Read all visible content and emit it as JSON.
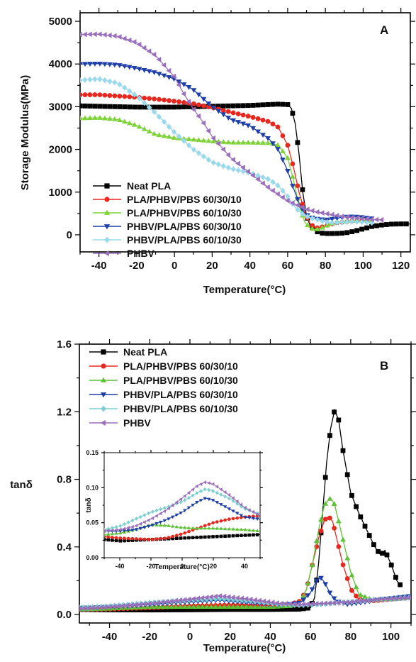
{
  "chart_data": [
    {
      "type": "line",
      "panel_label": "A",
      "xlabel": "Temperature(°C)",
      "ylabel": "Storage Modulus(MPa)",
      "xlim": [
        -50,
        125
      ],
      "ylim": [
        -400,
        5200
      ],
      "xticks": [
        -40,
        -20,
        0,
        20,
        40,
        60,
        80,
        100,
        120
      ],
      "yticks": [
        0,
        1000,
        2000,
        3000,
        4000,
        5000
      ],
      "legend_position": "bottom-left",
      "series": [
        {
          "name": "Neat PLA",
          "color": "#000000",
          "marker": "square",
          "x": [
            -50,
            -40,
            -30,
            -20,
            -10,
            0,
            10,
            20,
            30,
            40,
            50,
            55,
            60,
            62,
            64,
            66,
            68,
            70,
            72,
            75,
            78,
            80,
            85,
            90,
            95,
            100,
            105,
            110,
            115,
            120,
            125
          ],
          "y": [
            3020,
            3010,
            3000,
            2990,
            2990,
            2990,
            3000,
            3010,
            3020,
            3030,
            3050,
            3060,
            3050,
            2960,
            2600,
            1900,
            1000,
            450,
            200,
            80,
            40,
            30,
            30,
            40,
            80,
            140,
            200,
            230,
            250,
            255,
            255
          ]
        },
        {
          "name": "PLA/PHBV/PBS 60/30/10",
          "color": "#e8281e",
          "marker": "circle",
          "x": [
            -50,
            -40,
            -30,
            -20,
            -10,
            0,
            10,
            20,
            30,
            40,
            50,
            55,
            60,
            63,
            66,
            69,
            72,
            75,
            78,
            82,
            86,
            90,
            95,
            100,
            105
          ],
          "y": [
            3280,
            3280,
            3250,
            3220,
            3180,
            3130,
            3070,
            2980,
            2870,
            2770,
            2650,
            2520,
            2100,
            1600,
            1000,
            550,
            250,
            160,
            180,
            240,
            280,
            300,
            320,
            330,
            330
          ]
        },
        {
          "name": "PLA/PHBV/PBS 60/10/30",
          "color": "#7fd33a",
          "marker": "triangle-up",
          "x": [
            -50,
            -40,
            -30,
            -20,
            -10,
            0,
            10,
            20,
            30,
            40,
            50,
            55,
            60,
            63,
            66,
            69,
            72,
            75,
            78,
            82,
            86,
            90,
            95,
            100,
            105
          ],
          "y": [
            2730,
            2740,
            2700,
            2560,
            2350,
            2270,
            2230,
            2190,
            2160,
            2160,
            2150,
            2100,
            1800,
            1300,
            700,
            300,
            150,
            120,
            160,
            240,
            300,
            320,
            330,
            330,
            330
          ]
        },
        {
          "name": "PHBV/PLA/PBS 60/30/10",
          "color": "#1f3fa8",
          "marker": "triangle-down",
          "x": [
            -50,
            -40,
            -30,
            -20,
            -10,
            0,
            10,
            20,
            30,
            40,
            50,
            55,
            60,
            63,
            66,
            69,
            72,
            75,
            80,
            85,
            90,
            95,
            100,
            105
          ],
          "y": [
            4000,
            4010,
            3980,
            3900,
            3800,
            3650,
            3400,
            3000,
            2700,
            2550,
            2250,
            2000,
            1500,
            1100,
            750,
            500,
            420,
            380,
            350,
            380,
            420,
            430,
            410,
            380
          ]
        },
        {
          "name": "PHBV/PLA/PBS 60/10/30",
          "color": "#9ad8ec",
          "marker": "diamond",
          "x": [
            -50,
            -40,
            -30,
            -20,
            -10,
            0,
            10,
            20,
            30,
            40,
            50,
            55,
            60,
            63,
            66,
            69,
            72,
            76,
            80,
            85,
            90,
            95,
            100,
            105
          ],
          "y": [
            3620,
            3650,
            3550,
            3250,
            2850,
            2400,
            2000,
            1700,
            1550,
            1450,
            1300,
            1150,
            900,
            700,
            550,
            450,
            400,
            350,
            300,
            280,
            300,
            310,
            300,
            280
          ]
        },
        {
          "name": "PHBV",
          "color": "#9a6fbc",
          "marker": "triangle-left",
          "x": [
            -50,
            -40,
            -30,
            -20,
            -10,
            0,
            5,
            10,
            15,
            20,
            30,
            40,
            50,
            55,
            60,
            65,
            70,
            75,
            80,
            85,
            90,
            95,
            100,
            105,
            110
          ],
          "y": [
            4690,
            4700,
            4650,
            4500,
            4200,
            3700,
            3300,
            2950,
            2650,
            2300,
            1800,
            1450,
            1100,
            950,
            800,
            700,
            600,
            540,
            500,
            460,
            420,
            400,
            380,
            360,
            350
          ]
        }
      ]
    },
    {
      "type": "line",
      "panel_label": "B",
      "xlabel": "Temperature(°C)",
      "ylabel": "tanδ",
      "xlim": [
        -55,
        110
      ],
      "ylim": [
        -0.05,
        1.6
      ],
      "xticks": [
        -40,
        -20,
        0,
        20,
        40,
        60,
        80,
        100
      ],
      "yticks": [
        0.0,
        0.4,
        0.8,
        1.2,
        1.6
      ],
      "ytick_labels": [
        "0.0",
        "0.4",
        "0.8",
        "1.2",
        "1.6"
      ],
      "legend_position": "top-left",
      "series": [
        {
          "name": "Neat PLA",
          "color": "#000000",
          "marker": "square",
          "x": [
            -55,
            -40,
            -20,
            0,
            20,
            40,
            55,
            60,
            62,
            64,
            66,
            68,
            70,
            72,
            74,
            76,
            78,
            80,
            84,
            88,
            92,
            95,
            97,
            100,
            103,
            105
          ],
          "y": [
            0.03,
            0.028,
            0.027,
            0.028,
            0.03,
            0.03,
            0.032,
            0.04,
            0.1,
            0.3,
            0.6,
            0.9,
            1.1,
            1.21,
            1.15,
            0.98,
            0.85,
            0.72,
            0.6,
            0.5,
            0.4,
            0.35,
            0.38,
            0.3,
            0.2,
            0.17
          ]
        },
        {
          "name": "PLA/PHBV/PBS 60/30/10",
          "color": "#e8281e",
          "marker": "circle",
          "x": [
            -55,
            -40,
            -20,
            0,
            20,
            40,
            50,
            55,
            58,
            61,
            64,
            67,
            69,
            71,
            73,
            76,
            80,
            84,
            90,
            100,
            110
          ],
          "y": [
            0.03,
            0.032,
            0.04,
            0.05,
            0.055,
            0.055,
            0.06,
            0.08,
            0.15,
            0.3,
            0.45,
            0.56,
            0.58,
            0.55,
            0.45,
            0.3,
            0.15,
            0.09,
            0.08,
            0.09,
            0.1
          ]
        },
        {
          "name": "PLA/PHBV/PBS 60/10/30",
          "color": "#5fc136",
          "marker": "triangle-up",
          "x": [
            -55,
            -40,
            -20,
            0,
            20,
            40,
            50,
            55,
            58,
            61,
            64,
            67,
            70,
            72,
            74,
            77,
            80,
            84,
            90,
            100,
            110
          ],
          "y": [
            0.03,
            0.035,
            0.045,
            0.045,
            0.045,
            0.045,
            0.05,
            0.07,
            0.15,
            0.3,
            0.5,
            0.65,
            0.69,
            0.65,
            0.55,
            0.4,
            0.25,
            0.12,
            0.09,
            0.09,
            0.1
          ]
        },
        {
          "name": "PHBV/PLA/PBS 60/30/10",
          "color": "#1f3fa8",
          "marker": "triangle-down",
          "x": [
            -55,
            -40,
            -20,
            0,
            15,
            30,
            45,
            55,
            60,
            63,
            65,
            67,
            70,
            73,
            78,
            85,
            95,
            110
          ],
          "y": [
            0.04,
            0.045,
            0.06,
            0.075,
            0.085,
            0.07,
            0.055,
            0.07,
            0.13,
            0.2,
            0.22,
            0.19,
            0.12,
            0.08,
            0.06,
            0.07,
            0.09,
            0.11
          ]
        },
        {
          "name": "PHBV/PLA/PBS 60/10/30",
          "color": "#7cd0cf",
          "marker": "diamond",
          "x": [
            -55,
            -40,
            -20,
            0,
            15,
            30,
            45,
            55,
            65,
            75,
            85,
            95,
            110
          ],
          "y": [
            0.04,
            0.05,
            0.07,
            0.085,
            0.095,
            0.08,
            0.06,
            0.055,
            0.06,
            0.07,
            0.08,
            0.09,
            0.1
          ]
        },
        {
          "name": "PHBV",
          "color": "#9a6fbc",
          "marker": "triangle-left",
          "x": [
            -55,
            -40,
            -20,
            0,
            15,
            30,
            45,
            55,
            65,
            75,
            85,
            95,
            110
          ],
          "y": [
            0.035,
            0.045,
            0.065,
            0.09,
            0.11,
            0.09,
            0.065,
            0.06,
            0.065,
            0.07,
            0.08,
            0.09,
            0.1
          ]
        }
      ]
    },
    {
      "type": "line",
      "panel_label": "",
      "xlabel": "Temperature(°C)",
      "ylabel": "tanδ",
      "xlim": [
        -50,
        50
      ],
      "ylim": [
        0.0,
        0.15
      ],
      "xticks": [
        -40,
        -20,
        0,
        20,
        40
      ],
      "yticks": [
        0.0,
        0.05,
        0.1,
        0.15
      ],
      "ytick_labels": [
        "0.00",
        "0.05",
        "0.10",
        "0.15"
      ],
      "series": [
        {
          "name": "Neat PLA",
          "color": "#000000",
          "marker": "square",
          "x": [
            -50,
            -40,
            -30,
            -20,
            -10,
            0,
            10,
            20,
            30,
            40,
            50
          ],
          "y": [
            0.026,
            0.024,
            0.025,
            0.026,
            0.027,
            0.028,
            0.029,
            0.03,
            0.031,
            0.032,
            0.033
          ]
        },
        {
          "name": "PLA/PHBV/PBS 60/30/10",
          "color": "#e8281e",
          "marker": "circle",
          "x": [
            -50,
            -40,
            -30,
            -20,
            -10,
            0,
            10,
            20,
            30,
            40,
            50
          ],
          "y": [
            0.03,
            0.028,
            0.027,
            0.026,
            0.028,
            0.034,
            0.042,
            0.05,
            0.055,
            0.058,
            0.06
          ]
        },
        {
          "name": "PLA/PHBV/PBS 60/10/30",
          "color": "#5fc136",
          "marker": "triangle-up",
          "x": [
            -50,
            -40,
            -30,
            -20,
            -10,
            0,
            10,
            20,
            30,
            40,
            50
          ],
          "y": [
            0.033,
            0.035,
            0.04,
            0.047,
            0.046,
            0.043,
            0.042,
            0.042,
            0.041,
            0.04,
            0.038
          ]
        },
        {
          "name": "PHBV/PLA/PBS 60/30/10",
          "color": "#1f3fa8",
          "marker": "triangle-down",
          "x": [
            -50,
            -40,
            -30,
            -20,
            -10,
            0,
            10,
            15,
            20,
            30,
            40,
            50
          ],
          "y": [
            0.038,
            0.038,
            0.04,
            0.046,
            0.054,
            0.065,
            0.08,
            0.085,
            0.082,
            0.07,
            0.058,
            0.055
          ]
        },
        {
          "name": "PHBV/PLA/PBS 60/10/30",
          "color": "#7cd0cf",
          "marker": "diamond",
          "x": [
            -50,
            -40,
            -30,
            -20,
            -10,
            0,
            10,
            15,
            20,
            30,
            40,
            50
          ],
          "y": [
            0.04,
            0.045,
            0.055,
            0.065,
            0.072,
            0.08,
            0.093,
            0.098,
            0.095,
            0.085,
            0.07,
            0.062
          ]
        },
        {
          "name": "PHBV",
          "color": "#9a6fbc",
          "marker": "triangle-left",
          "x": [
            -50,
            -40,
            -30,
            -20,
            -10,
            0,
            10,
            15,
            20,
            30,
            40,
            50
          ],
          "y": [
            0.038,
            0.04,
            0.045,
            0.055,
            0.068,
            0.085,
            0.103,
            0.108,
            0.105,
            0.09,
            0.072,
            0.06
          ]
        }
      ]
    }
  ]
}
